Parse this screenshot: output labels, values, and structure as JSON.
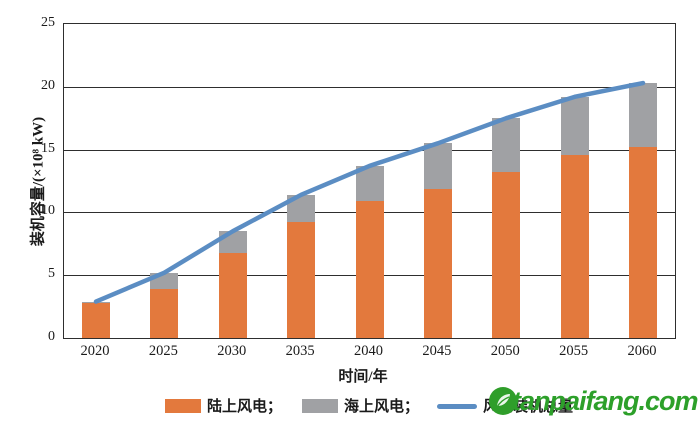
{
  "watermark": {
    "text": "tanpaifang.com",
    "color": "#2da02a",
    "logo": "leaf-circle"
  },
  "chart_data": {
    "type": "bar",
    "subtype": "stacked-bars-with-line-overlay",
    "title": "",
    "xlabel": "时间/年",
    "ylabel": "装机容量/(×10⁸ kW)",
    "categories": [
      "2020",
      "2025",
      "2030",
      "2035",
      "2040",
      "2045",
      "2050",
      "2055",
      "2060"
    ],
    "series": [
      {
        "name": "陆上风电",
        "type": "bar",
        "color": "#E3793D",
        "values": [
          2.8,
          3.9,
          6.8,
          9.2,
          10.9,
          11.9,
          13.2,
          14.6,
          15.2
        ]
      },
      {
        "name": "海上风电",
        "type": "bar",
        "color": "#A0A1A4",
        "values": [
          0.1,
          1.3,
          1.7,
          2.2,
          2.8,
          3.6,
          4.3,
          4.6,
          5.1
        ]
      },
      {
        "name": "风电装机总量",
        "type": "line",
        "color": "#5B8DC3",
        "values": [
          2.9,
          5.2,
          8.5,
          11.4,
          13.7,
          15.5,
          17.5,
          19.2,
          20.3
        ]
      }
    ],
    "legend_labels": [
      "陆上风电；",
      "海上风电；",
      "风电装机总量"
    ],
    "ylim": [
      0,
      25
    ],
    "yticks": [
      0,
      5,
      10,
      15,
      20,
      25
    ],
    "grid": "horizontal",
    "legend_position": "bottom"
  }
}
